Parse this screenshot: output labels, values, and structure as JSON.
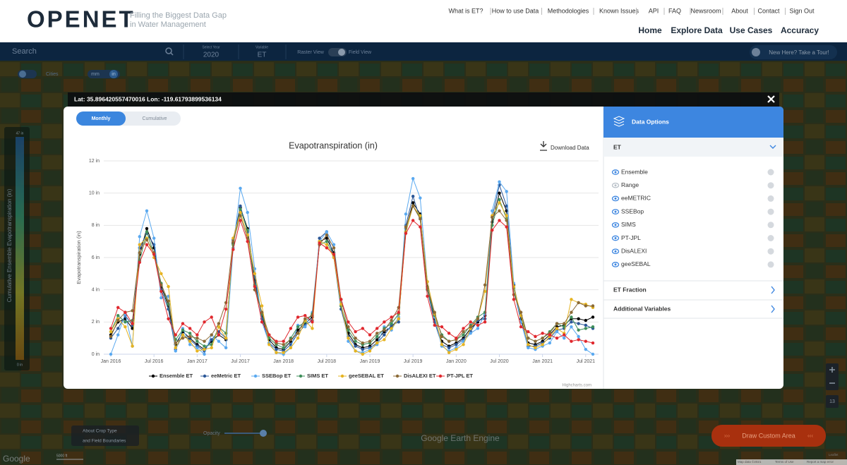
{
  "header": {
    "logo": "OPENET",
    "tagline": [
      "Filling the Biggest Data Gap",
      "in Water Management"
    ],
    "links": [
      "What is ET?",
      "How to use Data",
      "Methodologies",
      "Known Issues",
      "API",
      "FAQ",
      "Newsroom",
      "About",
      "Contact",
      "Sign Out"
    ],
    "nav": [
      "Home",
      "Explore Data",
      "Use Cases",
      "Accuracy"
    ]
  },
  "toolbar": {
    "search": "Search",
    "year_label": "Select Year",
    "year": "2020",
    "variable_label": "Variable",
    "variable": "ET",
    "raster": "Raster View",
    "field": "Field View",
    "tour": "New Here? Take a Tour!"
  },
  "map": {
    "cities": "Cities",
    "unit_mm": "mm",
    "unit_in": "in",
    "legend_max": "47 in",
    "legend_min": "0 in",
    "legend_title": "Cumulative Ensemble Evapotranspiration (in)",
    "crop": [
      "About Crop Type",
      "and Field Boundaries"
    ],
    "opacity": "Opacity",
    "draw": "Draw Custom Area",
    "engine": "Google Earth Engine",
    "zoom_level": "13",
    "google": "Google",
    "scale": "5000 ft",
    "attribution": [
      "Map data ©2021",
      "Terms of Use",
      "Report a map error"
    ],
    "leaflet": "Leaflet"
  },
  "popup": {
    "coords": "Lat: 35.896420557470016 Lon: -119.61793899536134",
    "tabs": [
      "Monthly",
      "Cumulative"
    ],
    "download": "Download Data",
    "credits": "Highcharts.com"
  },
  "options": {
    "title": "Data Options",
    "et": {
      "title": "ET",
      "items": [
        "Ensemble",
        "Range",
        "eeMETRIC",
        "SSEBop",
        "SIMS",
        "PT-JPL",
        "DisALEXI",
        "geeSEBAL"
      ]
    },
    "sections": [
      "ET Fraction",
      "Additional Variables"
    ]
  },
  "chart_data": {
    "type": "line",
    "title": "Evapotranspiration (in)",
    "y_label": "Evapotranspiration (in)",
    "grid": true,
    "x": [
      "2016-01",
      "2016-02",
      "2016-03",
      "2016-04",
      "2016-05",
      "2016-06",
      "2016-07",
      "2016-08",
      "2016-09",
      "2016-10",
      "2016-11",
      "2016-12",
      "2017-01",
      "2017-02",
      "2017-03",
      "2017-04",
      "2017-05",
      "2017-06",
      "2017-07",
      "2017-08",
      "2017-09",
      "2017-10",
      "2017-11",
      "2017-12",
      "2018-01",
      "2018-02",
      "2018-03",
      "2018-04",
      "2018-05",
      "2018-06",
      "2018-07",
      "2018-08",
      "2018-09",
      "2018-10",
      "2018-11",
      "2018-12",
      "2019-01",
      "2019-02",
      "2019-03",
      "2019-04",
      "2019-05",
      "2019-06",
      "2019-07",
      "2019-08",
      "2019-09",
      "2019-10",
      "2019-11",
      "2019-12",
      "2020-01",
      "2020-02",
      "2020-03",
      "2020-04",
      "2020-05",
      "2020-06",
      "2020-07",
      "2020-08",
      "2020-09",
      "2020-10",
      "2020-11",
      "2020-12",
      "2021-01",
      "2021-02",
      "2021-03",
      "2021-04",
      "2021-05",
      "2021-06",
      "2021-07",
      "2021-08"
    ],
    "xticks": [
      {
        "value": "2016-01",
        "label": "Jan 2016"
      },
      {
        "value": "2016-07",
        "label": "Jul 2016"
      },
      {
        "value": "2017-01",
        "label": "Jan 2017"
      },
      {
        "value": "2017-07",
        "label": "Jul 2017"
      },
      {
        "value": "2018-01",
        "label": "Jan 2018"
      },
      {
        "value": "2018-07",
        "label": "Jul 2018"
      },
      {
        "value": "2019-01",
        "label": "Jan 2019"
      },
      {
        "value": "2019-07",
        "label": "Jul 2019"
      },
      {
        "value": "2020-01",
        "label": "Jan 2020"
      },
      {
        "value": "2020-07",
        "label": "Jul 2020"
      },
      {
        "value": "2021-01",
        "label": "Jan 2021"
      },
      {
        "value": "2021-07",
        "label": "Jul 2021"
      }
    ],
    "ylim": [
      0,
      12
    ],
    "yticks": [
      {
        "value": 0,
        "label": "0 in"
      },
      {
        "value": 2,
        "label": "2 in"
      },
      {
        "value": 4,
        "label": "4 in"
      },
      {
        "value": 6,
        "label": "6 in"
      },
      {
        "value": 8,
        "label": "8 in"
      },
      {
        "value": 10,
        "label": "10 in"
      },
      {
        "value": 12,
        "label": "12 in"
      }
    ],
    "series": [
      {
        "name": "Ensemble ET",
        "color": "#000000",
        "values": [
          1.2,
          2.0,
          2.2,
          1.6,
          6.2,
          7.8,
          6.6,
          4.2,
          3.0,
          0.6,
          1.4,
          1.0,
          0.6,
          0.3,
          0.8,
          1.2,
          0.9,
          6.9,
          9.1,
          7.8,
          4.6,
          2.4,
          0.9,
          0.4,
          0.3,
          0.8,
          1.5,
          1.9,
          2.3,
          7.0,
          7.2,
          6.3,
          3.0,
          1.3,
          0.6,
          0.4,
          0.5,
          0.9,
          1.4,
          1.7,
          2.2,
          7.8,
          9.4,
          8.7,
          4.2,
          2.2,
          0.8,
          0.5,
          0.7,
          1.0,
          1.6,
          2.0,
          2.4,
          8.2,
          10.0,
          8.9,
          4.3,
          2.2,
          0.7,
          0.6,
          0.8,
          1.2,
          1.7,
          1.8,
          2.2,
          2.2,
          2.1,
          2.3
        ]
      },
      {
        "name": "eeMetric ET",
        "color": "#2b5797",
        "values": [
          1.0,
          1.6,
          2.4,
          1.8,
          6.6,
          7.5,
          6.8,
          4.0,
          2.8,
          0.3,
          1.2,
          0.9,
          0.5,
          0.2,
          0.9,
          1.4,
          1.0,
          7.1,
          9.2,
          7.6,
          4.8,
          2.2,
          0.7,
          0.3,
          0.2,
          0.6,
          1.3,
          1.8,
          2.1,
          7.2,
          7.6,
          6.0,
          2.8,
          1.1,
          0.5,
          0.3,
          0.4,
          0.7,
          1.2,
          1.8,
          2.0,
          8.0,
          9.8,
          8.4,
          4.0,
          2.0,
          0.6,
          0.4,
          0.6,
          0.9,
          1.4,
          2.1,
          2.2,
          8.5,
          10.5,
          9.2,
          4.1,
          2.0,
          0.5,
          0.5,
          0.7,
          1.0,
          1.5,
          1.6,
          2.0,
          1.9,
          1.8,
          1.6
        ]
      },
      {
        "name": "SSEBop ET",
        "color": "#5aa9f0",
        "values": [
          0.0,
          1.2,
          2.5,
          0.5,
          7.3,
          8.9,
          7.2,
          3.5,
          3.6,
          0.2,
          1.6,
          0.6,
          0.4,
          0.0,
          1.2,
          0.8,
          0.4,
          6.6,
          10.3,
          8.8,
          5.3,
          2.0,
          0.7,
          0.1,
          0.0,
          0.4,
          1.8,
          1.7,
          2.6,
          7.0,
          7.6,
          6.8,
          3.2,
          0.8,
          0.2,
          0.1,
          0.3,
          0.6,
          1.7,
          1.5,
          2.3,
          8.7,
          10.9,
          9.7,
          4.5,
          2.3,
          0.5,
          0.2,
          0.4,
          0.8,
          1.3,
          1.6,
          2.5,
          8.9,
          10.7,
          10.1,
          4.4,
          2.0,
          0.4,
          0.3,
          0.5,
          0.7,
          1.4,
          1.0,
          1.7,
          1.1,
          0.3,
          0.0
        ]
      },
      {
        "name": "SIMS ET",
        "color": "#3e8e5a",
        "values": [
          1.4,
          2.4,
          2.0,
          2.1,
          5.8,
          7.6,
          6.2,
          4.4,
          3.1,
          0.9,
          1.5,
          1.3,
          0.8,
          0.5,
          0.6,
          1.7,
          1.3,
          6.8,
          9.0,
          7.7,
          4.3,
          2.5,
          1.0,
          0.6,
          0.4,
          1.0,
          1.7,
          2.0,
          2.5,
          6.8,
          7.0,
          6.1,
          3.0,
          1.5,
          0.8,
          0.6,
          0.7,
          1.1,
          1.6,
          1.9,
          2.5,
          7.6,
          9.2,
          8.5,
          4.0,
          2.4,
          1.2,
          0.8,
          0.9,
          1.2,
          1.8,
          2.3,
          2.6,
          8.0,
          9.6,
          8.4,
          4.1,
          2.4,
          1.0,
          0.8,
          1.0,
          1.4,
          1.9,
          1.7,
          2.3,
          1.5,
          1.6,
          1.7
        ]
      },
      {
        "name": "geeSEBAL ET",
        "color": "#e6b422",
        "values": [
          1.4,
          2.2,
          1.7,
          0.5,
          6.8,
          7.2,
          6.0,
          5.0,
          4.2,
          0.4,
          1.2,
          0.8,
          0.2,
          0.3,
          0.4,
          1.7,
          1.0,
          7.2,
          8.8,
          7.4,
          5.0,
          3.0,
          0.6,
          0.1,
          0.1,
          0.4,
          1.0,
          2.1,
          1.6,
          7.0,
          6.8,
          6.0,
          3.1,
          1.0,
          0.2,
          0.0,
          0.2,
          0.7,
          0.9,
          1.6,
          2.2,
          7.6,
          9.2,
          8.6,
          4.5,
          2.5,
          0.6,
          0.1,
          0.3,
          0.6,
          1.6,
          2.2,
          3.9,
          8.6,
          9.4,
          8.6,
          4.2,
          2.4,
          0.6,
          0.4,
          0.6,
          1.1,
          1.6,
          1.3,
          3.4,
          3.2,
          3.1,
          2.9
        ]
      },
      {
        "name": "DisALEXI ET",
        "color": "#8b6a36",
        "values": [
          1.1,
          2.1,
          2.6,
          2.7,
          6.3,
          7.1,
          6.3,
          4.3,
          3.3,
          0.7,
          1.0,
          1.1,
          1.0,
          0.8,
          1.2,
          1.9,
          3.2,
          7.0,
          8.6,
          7.2,
          4.0,
          2.6,
          1.2,
          0.7,
          0.6,
          0.9,
          1.3,
          2.2,
          2.4,
          6.8,
          7.4,
          6.6,
          3.4,
          1.7,
          1.0,
          0.7,
          0.8,
          1.3,
          1.5,
          2.1,
          2.9,
          7.9,
          9.2,
          8.4,
          4.1,
          2.6,
          1.1,
          0.8,
          0.9,
          1.4,
          1.7,
          2.2,
          4.3,
          8.5,
          8.9,
          8.3,
          3.7,
          2.6,
          1.0,
          0.8,
          1.0,
          1.3,
          1.9,
          1.9,
          2.6,
          3.2,
          3.0,
          3.0
        ]
      },
      {
        "name": "PT-JPL ET",
        "color": "#e0282e",
        "values": [
          1.6,
          2.9,
          2.6,
          1.9,
          5.7,
          6.8,
          6.2,
          3.9,
          2.2,
          1.2,
          1.9,
          1.6,
          1.2,
          2.0,
          2.3,
          1.2,
          2.8,
          6.5,
          8.3,
          7.0,
          4.2,
          2.0,
          1.2,
          0.8,
          0.8,
          1.6,
          2.3,
          2.4,
          2.0,
          6.9,
          6.6,
          6.2,
          3.4,
          2.0,
          1.4,
          1.6,
          1.2,
          1.6,
          2.0,
          2.3,
          2.6,
          7.5,
          8.3,
          7.9,
          3.6,
          1.8,
          1.7,
          1.3,
          1.0,
          1.6,
          2.0,
          1.8,
          2.0,
          7.7,
          8.3,
          7.9,
          3.4,
          1.7,
          1.4,
          1.1,
          1.3,
          1.2,
          1.0,
          1.2,
          0.8,
          0.9,
          0.8,
          0.7
        ]
      }
    ]
  }
}
